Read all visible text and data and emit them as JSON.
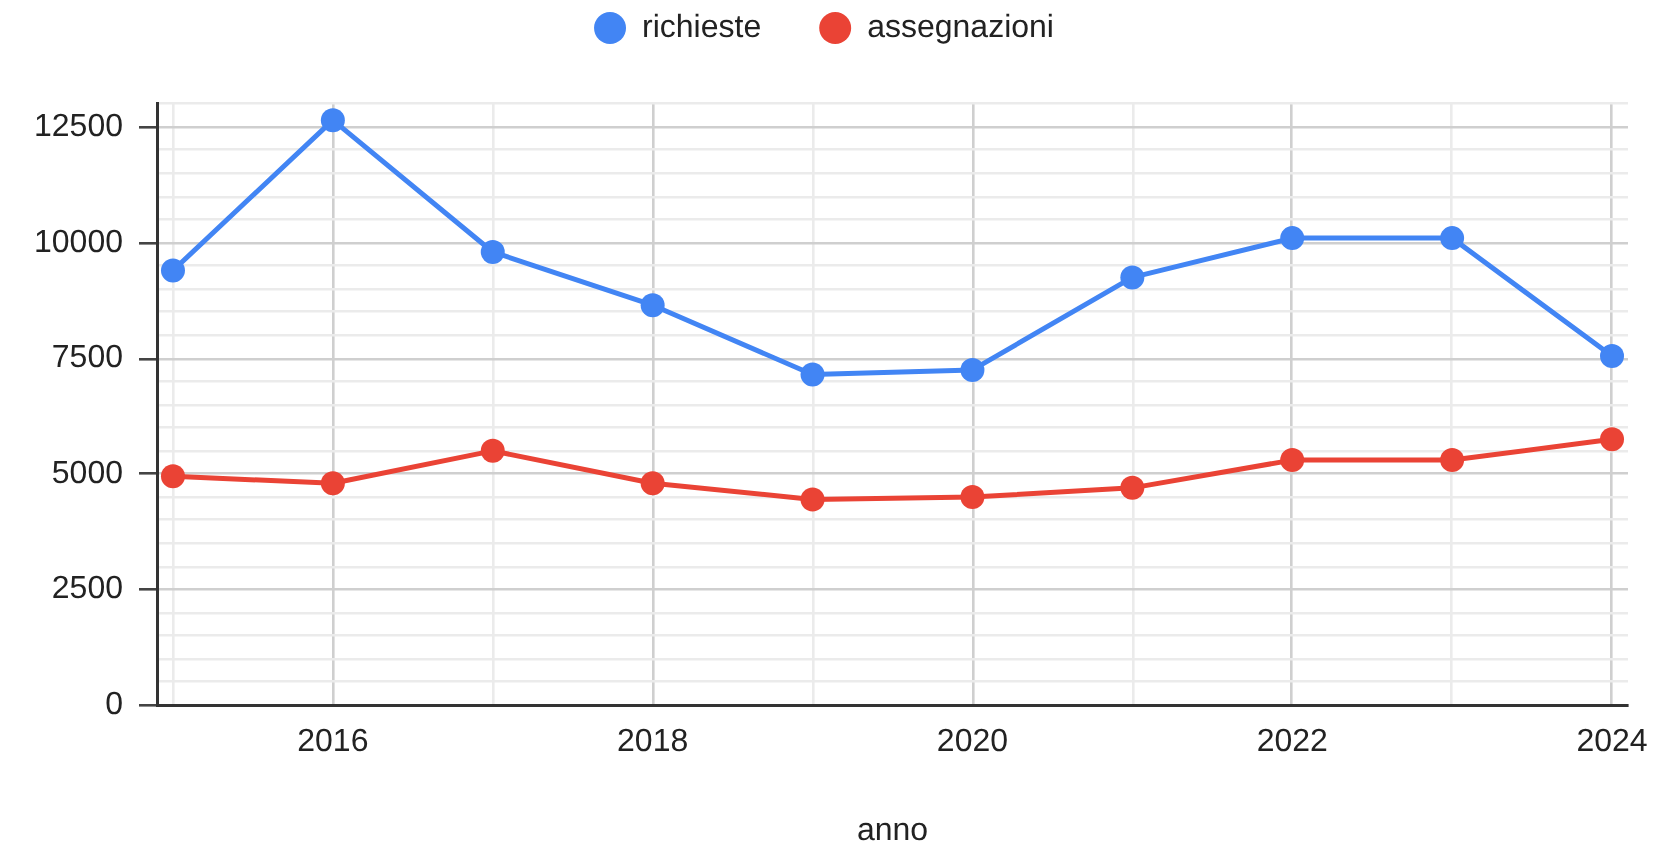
{
  "chart_data": {
    "type": "line",
    "xlabel": "anno",
    "x": [
      2015,
      2016,
      2017,
      2018,
      2019,
      2020,
      2021,
      2022,
      2023,
      2024
    ],
    "series": [
      {
        "name": "richieste",
        "color": "#4285f4",
        "values": [
          9400,
          12650,
          9800,
          8650,
          7150,
          7250,
          9250,
          10100,
          10100,
          7550
        ]
      },
      {
        "name": "assegnazioni",
        "color": "#ea4335",
        "values": [
          4950,
          4800,
          5500,
          4800,
          4450,
          4500,
          4700,
          5300,
          5300,
          5750
        ]
      }
    ],
    "xlim": [
      2014.9,
      2024.1
    ],
    "xticks": [
      {
        "value": 2015,
        "label": null
      },
      2016,
      {
        "value": 2017,
        "label": null
      },
      2018,
      {
        "value": 2019,
        "label": null
      },
      2020,
      {
        "value": 2021,
        "label": null
      },
      2022,
      {
        "value": 2023,
        "label": null
      },
      2024
    ],
    "ylim": [
      0,
      13000
    ],
    "yticks": [
      0,
      {
        "value": 500,
        "label": null
      },
      {
        "value": 1000,
        "label": null
      },
      {
        "value": 1500,
        "label": null
      },
      {
        "value": 2000,
        "label": null
      },
      2500,
      {
        "value": 3000,
        "label": null
      },
      {
        "value": 3500,
        "label": null
      },
      {
        "value": 4000,
        "label": null
      },
      {
        "value": 4500,
        "label": null
      },
      5000,
      {
        "value": 5500,
        "label": null
      },
      {
        "value": 6000,
        "label": null
      },
      {
        "value": 6500,
        "label": null
      },
      {
        "value": 7000,
        "label": null
      },
      7500,
      {
        "value": 8000,
        "label": null
      },
      {
        "value": 8500,
        "label": null
      },
      {
        "value": 9000,
        "label": null
      },
      {
        "value": 9500,
        "label": null
      },
      10000,
      {
        "value": 10500,
        "label": null
      },
      {
        "value": 11000,
        "label": null
      },
      {
        "value": 11500,
        "label": null
      },
      {
        "value": 12000,
        "label": null
      },
      12500,
      {
        "value": 13000,
        "label": null
      }
    ],
    "grid": true,
    "legend": "top",
    "marker": "circle",
    "line_style": "solid"
  }
}
